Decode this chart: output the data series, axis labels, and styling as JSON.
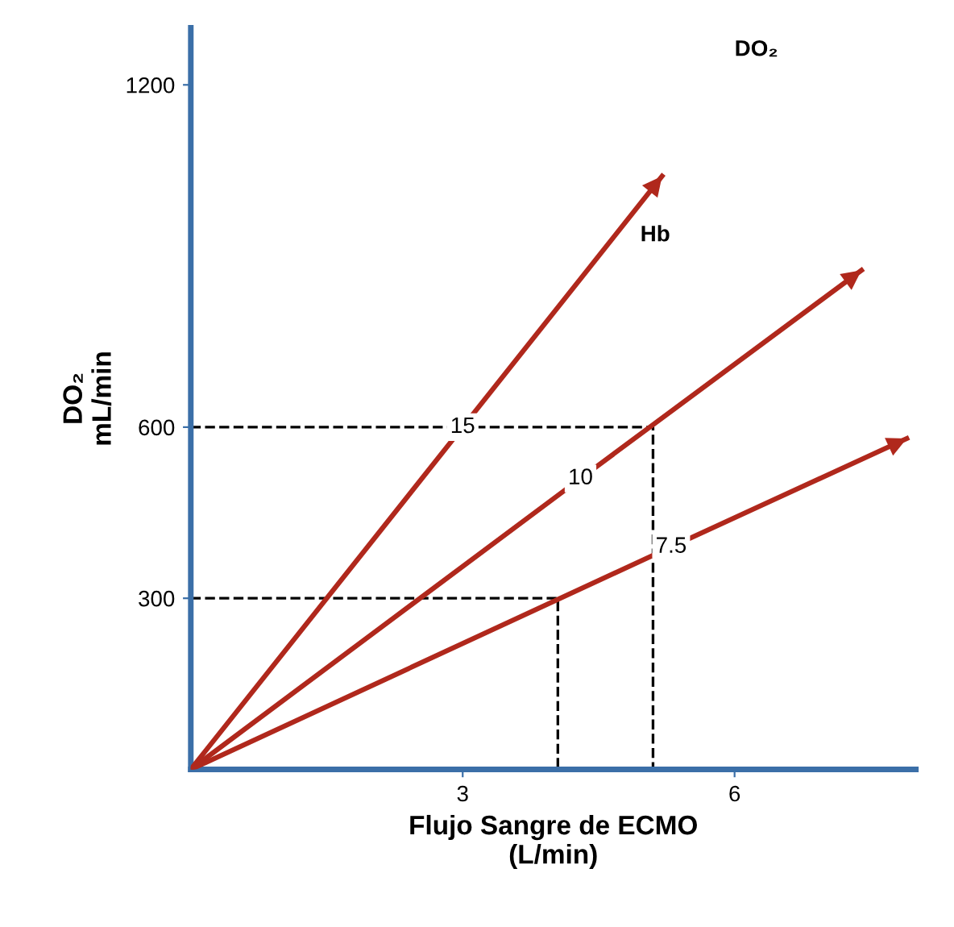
{
  "chart_data": {
    "type": "line",
    "xlabel": "Flujo Sangre de ECMO\n(L/min)",
    "ylabel": "DO₂\nmL/min",
    "xlim": [
      0,
      8
    ],
    "ylim": [
      0,
      1300
    ],
    "xticks": [
      3,
      6
    ],
    "yticks": [
      300,
      600,
      1200
    ],
    "grid": false,
    "legend": false,
    "marker": "none",
    "series": [
      {
        "name": "15",
        "color": "#b0281c",
        "x": [
          0,
          3,
          5.2
        ],
        "values": [
          0,
          600,
          1040
        ]
      },
      {
        "name": "10",
        "color": "#b0281c",
        "x": [
          0,
          4.3,
          7.4
        ],
        "values": [
          0,
          510,
          875
        ]
      },
      {
        "name": "7.5",
        "color": "#b0281c",
        "x": [
          0,
          5.3,
          7.9
        ],
        "values": [
          0,
          390,
          580
        ]
      },
      {
        "color": "#000000",
        "line_style": "dashed",
        "x": [
          0,
          5.1,
          5.1
        ],
        "values": [
          600,
          600,
          0
        ]
      },
      {
        "color": "#000000",
        "line_style": "dashed",
        "x": [
          0,
          4.05,
          4.05
        ],
        "values": [
          300,
          300,
          0
        ]
      }
    ],
    "annotations": [
      "DO₂",
      "Hb"
    ]
  }
}
